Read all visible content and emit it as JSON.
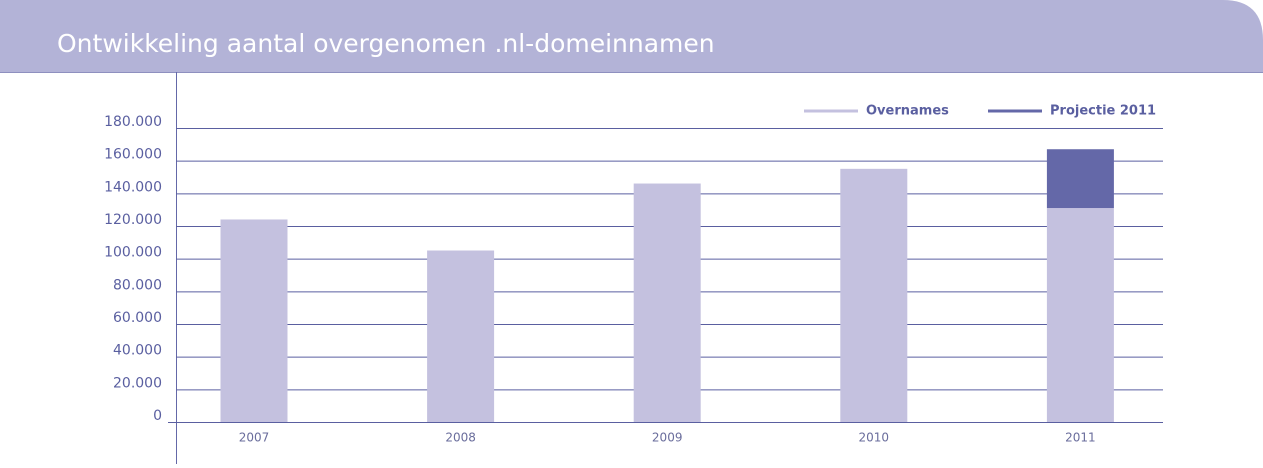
{
  "chart_data": {
    "type": "stacked_bar",
    "title": "Ontwikkeling aantal overgenomen .nl-domeinnamen",
    "categories": [
      "2007",
      "2008",
      "2009",
      "2010",
      "2011"
    ],
    "series": [
      {
        "name": "Overnames",
        "color": "#c4c1df",
        "values": [
          124000,
          105000,
          146000,
          155000,
          131000
        ]
      },
      {
        "name": "Projectie 2011",
        "color": "#6468a8",
        "values": [
          null,
          null,
          null,
          null,
          36000
        ]
      }
    ],
    "ylim": [
      0,
      180000
    ],
    "yticks": [
      0,
      {
        "value": 20000,
        "label": "20.000"
      },
      {
        "value": 40000,
        "label": "40.000"
      },
      {
        "value": 60000,
        "label": "60.000"
      },
      {
        "value": 80000,
        "label": "80.000"
      },
      {
        "value": 100000,
        "label": "100.000"
      },
      {
        "value": 120000,
        "label": "120.000"
      },
      {
        "value": 140000,
        "label": "140.000"
      },
      {
        "value": 160000,
        "label": "160.000"
      },
      {
        "value": 180000,
        "label": "180.000"
      }
    ],
    "grid": true,
    "legend": "top-right"
  }
}
